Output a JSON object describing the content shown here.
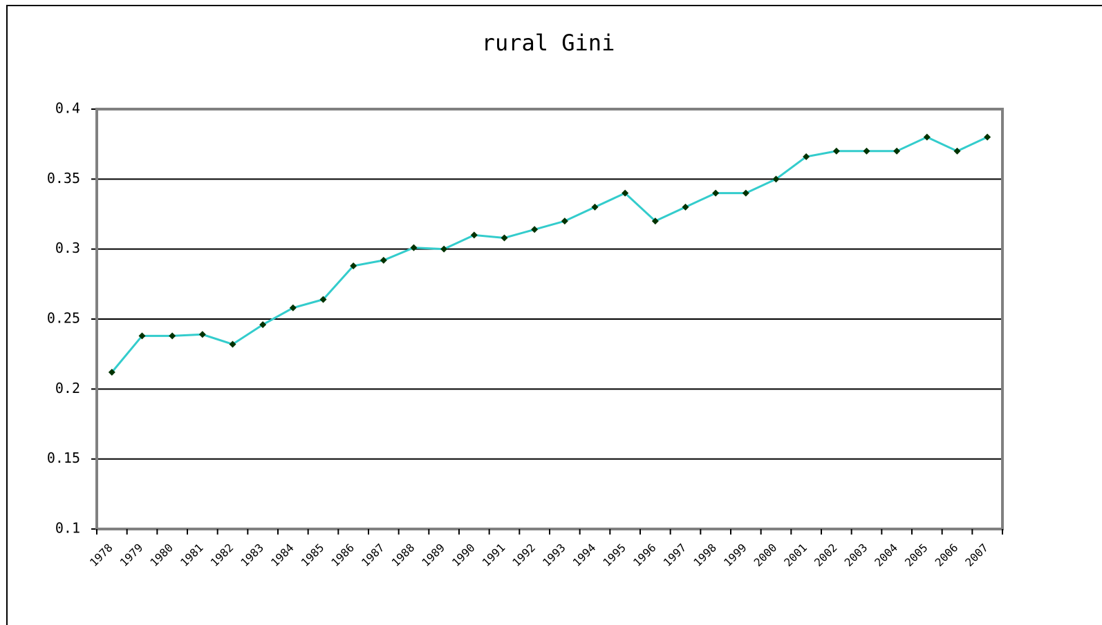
{
  "chart_data": {
    "type": "line",
    "title": "rural Gini",
    "categories": [
      "1978",
      "1979",
      "1980",
      "1981",
      "1982",
      "1983",
      "1984",
      "1985",
      "1986",
      "1987",
      "1988",
      "1989",
      "1990",
      "1991",
      "1992",
      "1993",
      "1994",
      "1995",
      "1996",
      "1997",
      "1998",
      "1999",
      "2000",
      "2001",
      "2002",
      "2003",
      "2004",
      "2005",
      "2006",
      "2007"
    ],
    "series": [
      {
        "name": "rural Gini",
        "color": "#33cccc",
        "marker_color": "#003300",
        "values": [
          0.212,
          0.238,
          0.238,
          0.239,
          0.232,
          0.246,
          0.258,
          0.264,
          0.288,
          0.292,
          0.301,
          0.3,
          0.31,
          0.308,
          0.314,
          0.32,
          0.33,
          0.34,
          0.32,
          0.33,
          0.34,
          0.34,
          0.35,
          0.366,
          0.37,
          0.37,
          0.37,
          0.38,
          0.37,
          0.38
        ]
      }
    ],
    "ylim": [
      0.1,
      0.4
    ],
    "yticks": [
      0.1,
      0.15,
      0.2,
      0.25,
      0.3,
      0.35,
      0.4
    ],
    "grid": true
  }
}
